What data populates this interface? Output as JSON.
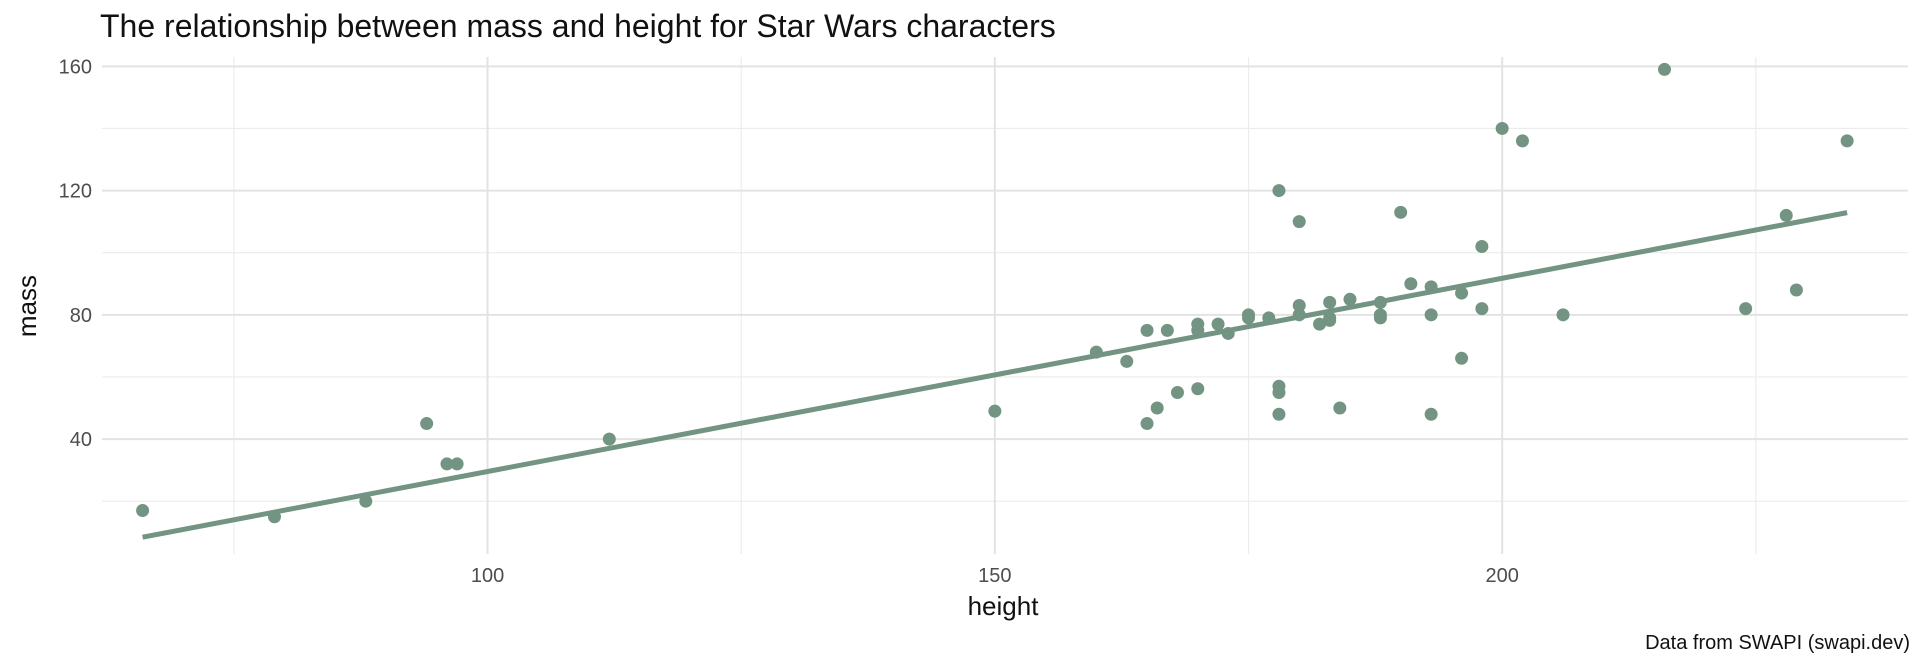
{
  "chart_data": {
    "type": "scatter",
    "title": "The relationship between mass and height for Star Wars characters",
    "caption": "Data from SWAPI (swapi.dev)",
    "xlabel": "height",
    "ylabel": "mass",
    "xlim": [
      62,
      240
    ],
    "ylim": [
      3,
      163
    ],
    "x_ticks": [
      100,
      150,
      200
    ],
    "y_ticks": [
      40,
      80,
      120,
      160
    ],
    "grid": true,
    "color": "#739483",
    "points": [
      {
        "x": 66,
        "y": 17
      },
      {
        "x": 79,
        "y": 15
      },
      {
        "x": 88,
        "y": 20
      },
      {
        "x": 94,
        "y": 45
      },
      {
        "x": 96,
        "y": 32
      },
      {
        "x": 97,
        "y": 32
      },
      {
        "x": 112,
        "y": 40
      },
      {
        "x": 150,
        "y": 49
      },
      {
        "x": 160,
        "y": 68
      },
      {
        "x": 163,
        "y": 65
      },
      {
        "x": 165,
        "y": 75
      },
      {
        "x": 165,
        "y": 45
      },
      {
        "x": 166,
        "y": 50
      },
      {
        "x": 167,
        "y": 75
      },
      {
        "x": 168,
        "y": 55
      },
      {
        "x": 170,
        "y": 77
      },
      {
        "x": 170,
        "y": 75
      },
      {
        "x": 170,
        "y": 56.2
      },
      {
        "x": 172,
        "y": 77
      },
      {
        "x": 173,
        "y": 74
      },
      {
        "x": 175,
        "y": 79
      },
      {
        "x": 175,
        "y": 80
      },
      {
        "x": 177,
        "y": 79
      },
      {
        "x": 178,
        "y": 120
      },
      {
        "x": 178,
        "y": 57
      },
      {
        "x": 178,
        "y": 55
      },
      {
        "x": 178,
        "y": 48
      },
      {
        "x": 180,
        "y": 110
      },
      {
        "x": 180,
        "y": 83
      },
      {
        "x": 180,
        "y": 80
      },
      {
        "x": 182,
        "y": 77
      },
      {
        "x": 183,
        "y": 84
      },
      {
        "x": 183,
        "y": 79
      },
      {
        "x": 183,
        "y": 78.2
      },
      {
        "x": 184,
        "y": 50
      },
      {
        "x": 185,
        "y": 85
      },
      {
        "x": 188,
        "y": 84
      },
      {
        "x": 188,
        "y": 80
      },
      {
        "x": 188,
        "y": 79
      },
      {
        "x": 190,
        "y": 113
      },
      {
        "x": 191,
        "y": 90
      },
      {
        "x": 193,
        "y": 89
      },
      {
        "x": 193,
        "y": 80
      },
      {
        "x": 193,
        "y": 48
      },
      {
        "x": 196,
        "y": 87
      },
      {
        "x": 196,
        "y": 66
      },
      {
        "x": 198,
        "y": 102
      },
      {
        "x": 198,
        "y": 82
      },
      {
        "x": 200,
        "y": 140
      },
      {
        "x": 202,
        "y": 136
      },
      {
        "x": 206,
        "y": 80
      },
      {
        "x": 216,
        "y": 159
      },
      {
        "x": 224,
        "y": 82
      },
      {
        "x": 228,
        "y": 112
      },
      {
        "x": 229,
        "y": 88
      },
      {
        "x": 234,
        "y": 136
      }
    ],
    "trend_line": {
      "x": [
        66,
        234
      ],
      "y": [
        8.4,
        112.9
      ]
    }
  }
}
